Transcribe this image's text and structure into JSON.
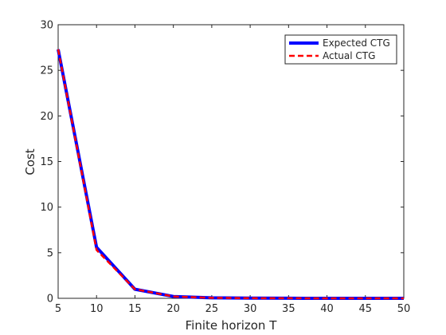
{
  "chart_data": {
    "type": "line",
    "title": "",
    "xlabel": "Finite horizon T",
    "ylabel": "Cost",
    "xlim": [
      5,
      50
    ],
    "ylim": [
      0,
      30
    ],
    "xticks": [
      5,
      10,
      15,
      20,
      25,
      30,
      35,
      40,
      45,
      50
    ],
    "yticks": [
      0,
      5,
      10,
      15,
      20,
      25,
      30
    ],
    "grid": false,
    "legend_position": "top-right",
    "x": [
      5,
      10,
      15,
      20,
      25,
      30,
      35,
      40,
      45,
      50
    ],
    "series": [
      {
        "name": "Expected CTG",
        "values": [
          27.3,
          5.6,
          1.0,
          0.2,
          0.05,
          0.02,
          0.01,
          0.0,
          0.0,
          0.0
        ],
        "color": "#0000ff",
        "style": "solid"
      },
      {
        "name": "Actual CTG",
        "values": [
          27.3,
          5.3,
          1.0,
          0.2,
          0.05,
          0.02,
          0.01,
          0.0,
          0.0,
          0.0
        ],
        "color": "#ff0000",
        "style": "dashed"
      }
    ]
  }
}
